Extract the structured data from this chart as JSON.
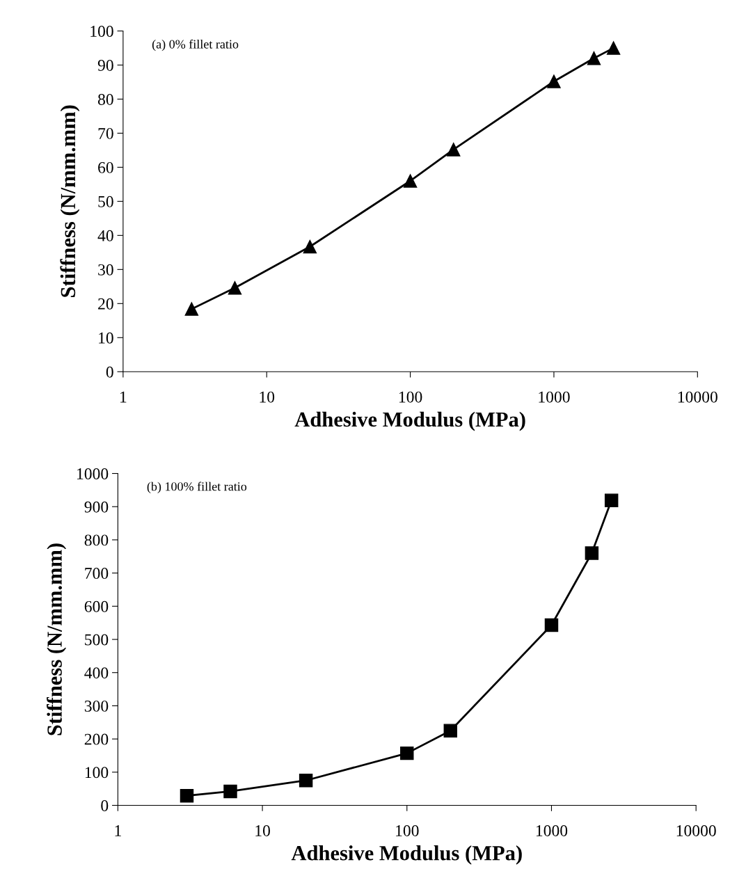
{
  "chart_data": [
    {
      "type": "line",
      "xlabel": "Adhesive Modulus (MPa)",
      "ylabel": "Stiffness (N/mm.mm)",
      "annotations": [
        "(a) 0% fillet ratio"
      ],
      "log": "x",
      "marker": "triangle",
      "line_style": "solid",
      "grid": false,
      "legend": false,
      "x": [
        3,
        6,
        20,
        100,
        200,
        1000,
        1900,
        2600
      ],
      "series": [
        {
          "color": "#000000",
          "values": [
            18.4,
            24.6,
            36.7,
            56,
            65.2,
            85.2,
            92,
            95
          ]
        }
      ],
      "xlim": [
        1,
        10000
      ],
      "xticks": [
        1,
        10,
        100,
        1000,
        10000
      ],
      "ylim": [
        0,
        100
      ],
      "yticks": [
        0,
        10,
        20,
        30,
        40,
        50,
        60,
        70,
        80,
        90,
        100
      ]
    },
    {
      "type": "line",
      "xlabel": "Adhesive Modulus (MPa)",
      "ylabel": "Stiffness (N/mm.mm)",
      "annotations": [
        "(b) 100% fillet ratio"
      ],
      "log": "x",
      "marker": "square",
      "line_style": "solid",
      "grid": false,
      "legend": false,
      "x": [
        3,
        6,
        20,
        100,
        200,
        1000,
        1900,
        2600
      ],
      "series": [
        {
          "color": "#000000",
          "values": [
            29,
            42,
            75,
            157,
            225,
            543,
            760,
            919
          ]
        }
      ],
      "xlim": [
        1,
        10000
      ],
      "xticks": [
        1,
        10,
        100,
        1000,
        10000
      ],
      "ylim": [
        0,
        1000
      ],
      "yticks": [
        0,
        100,
        200,
        300,
        400,
        500,
        600,
        700,
        800,
        900,
        1000
      ]
    }
  ]
}
